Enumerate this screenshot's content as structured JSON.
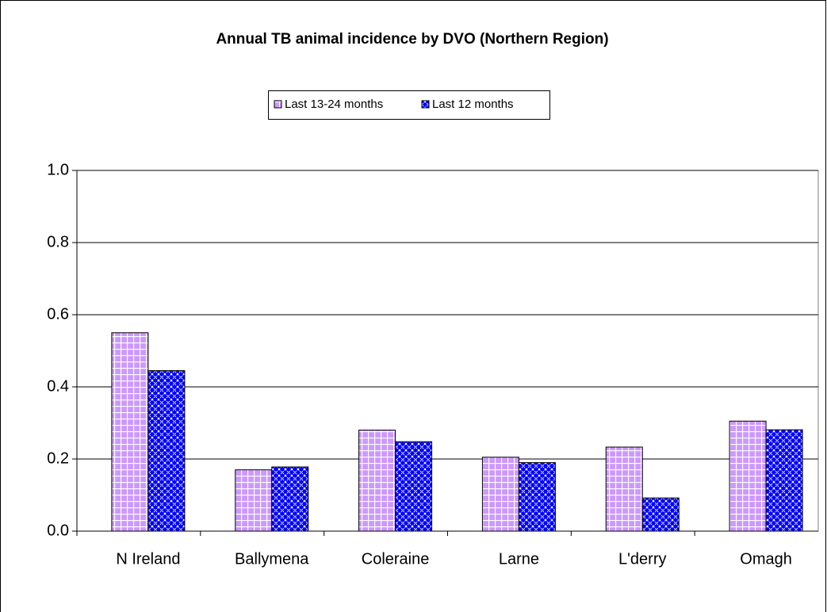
{
  "chart_data": {
    "type": "bar",
    "title": "Annual TB animal incidence by DVO (Northern Region)",
    "categories": [
      "N Ireland",
      "Ballymena",
      "Coleraine",
      "Larne",
      "L'derry",
      "Omagh"
    ],
    "series": [
      {
        "name": "Last 13-24 months",
        "color": "#cc99ff",
        "values": [
          0.55,
          0.17,
          0.28,
          0.205,
          0.233,
          0.305
        ]
      },
      {
        "name": "Last 12 months",
        "color": "#0000ff",
        "values": [
          0.445,
          0.178,
          0.248,
          0.19,
          0.092,
          0.281
        ]
      }
    ],
    "ylim": [
      0,
      1
    ],
    "yticks": [
      {
        "value": 0,
        "label": "0.0"
      },
      {
        "value": 0.2,
        "label": "0.2"
      },
      {
        "value": 0.4,
        "label": "0.4"
      },
      {
        "value": 0.6,
        "label": "0.6"
      },
      {
        "value": 0.8,
        "label": "0.8"
      },
      {
        "value": 1,
        "label": "1.0"
      }
    ],
    "grid": true
  }
}
